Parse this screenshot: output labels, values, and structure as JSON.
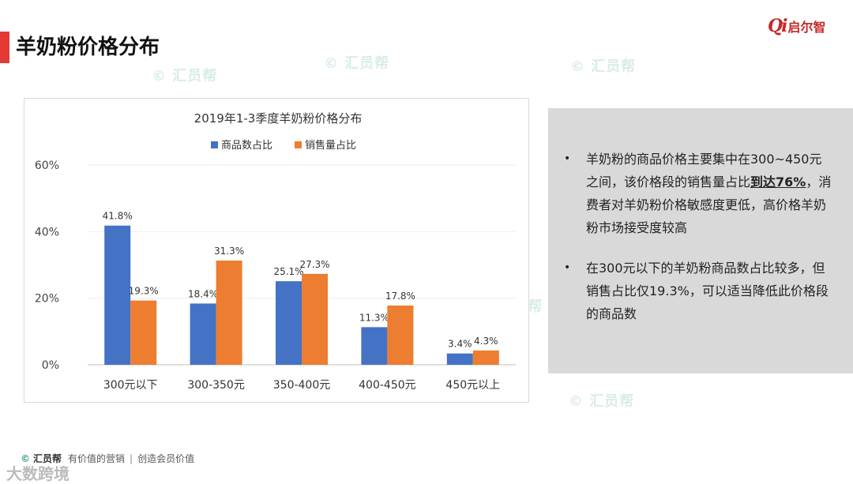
{
  "page": {
    "title": "羊奶粉价格分布",
    "brand_mark": "Qi",
    "brand_name": "启尔智",
    "watermark_text": "汇员帮",
    "accent_color": "#e53935"
  },
  "chart_data": {
    "type": "bar",
    "title": "2019年1-3季度羊奶粉价格分布",
    "categories": [
      "300元以下",
      "300-350元",
      "350-400元",
      "400-450元",
      "450元以上"
    ],
    "series": [
      {
        "name": "商品数占比",
        "color": "#4472c4",
        "values": [
          41.8,
          18.4,
          25.1,
          11.3,
          3.4
        ],
        "labels": [
          "41.8%",
          "18.4%",
          "25.1%",
          "11.3%",
          "3.4%"
        ]
      },
      {
        "name": "销售量占比",
        "color": "#ed7d31",
        "values": [
          19.3,
          31.3,
          27.3,
          17.8,
          4.3
        ],
        "labels": [
          "19.3%",
          "31.3%",
          "27.3%",
          "17.8%",
          "4.3%"
        ]
      }
    ],
    "ylim": [
      0,
      60
    ],
    "yticks": [
      0,
      20,
      40,
      60
    ],
    "ytick_labels": [
      "0%",
      "20%",
      "40%",
      "60%"
    ],
    "xlabel": "",
    "ylabel": "",
    "legend_position": "top-center",
    "grid": true
  },
  "notes": {
    "bullet": "•",
    "items": [
      {
        "before": "羊奶粉的商品价格主要集中在300~450元之间，该价格段的销售量占比",
        "emph": "到达76%",
        "after": "，消费者对羊奶粉价格敏感度更低，高价格羊奶粉市场接受度较高"
      },
      {
        "before": "在300元以下的羊奶粉商品数占比较多，但销售占比仅19.3%，可以适当降低此价格段的商品数",
        "emph": "",
        "after": ""
      }
    ]
  },
  "footer": {
    "logo_symbol": "©",
    "logo_text": "汇员帮",
    "slogan_left": "有价值的营销",
    "separator": "|",
    "slogan_right": "创造会员价值",
    "corner_text": "大数跨境"
  }
}
